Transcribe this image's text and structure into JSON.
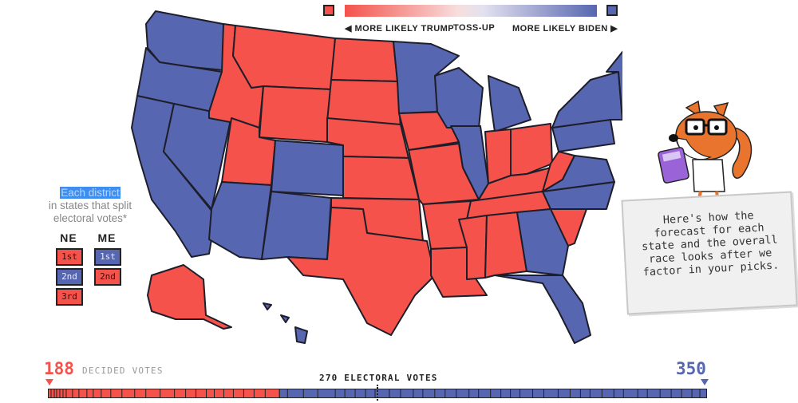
{
  "legend": {
    "trump_label": "◀ MORE LIKELY TRUMP",
    "tossup_label": "TOSS-UP",
    "biden_label": "MORE LIKELY BIDEN ▶",
    "trump_color": "#f4524a",
    "biden_color": "#5766b0"
  },
  "split_note": {
    "highlight": "Each district",
    "rest": "in states that split electoral votes*"
  },
  "districts": {
    "ne_label": "NE",
    "me_label": "ME",
    "ne": [
      {
        "label": "1st",
        "party": "red"
      },
      {
        "label": "2nd",
        "party": "blue"
      },
      {
        "label": "3rd",
        "party": "red"
      }
    ],
    "me": [
      {
        "label": "1st",
        "party": "blue"
      },
      {
        "label": "2nd",
        "party": "red"
      }
    ]
  },
  "bubble": {
    "text": "Here's how the forecast for each state and the overall race looks after we factor in your picks."
  },
  "totals": {
    "trump": "188",
    "decided_label": "DECIDED VOTES",
    "biden": "350",
    "threshold_label": "270 ELECTORAL VOTES",
    "trump_votes": 188,
    "biden_votes": 350,
    "total_votes": 538
  },
  "mascot": {
    "icon": "fox-with-glasses-and-calculator-icon"
  }
}
